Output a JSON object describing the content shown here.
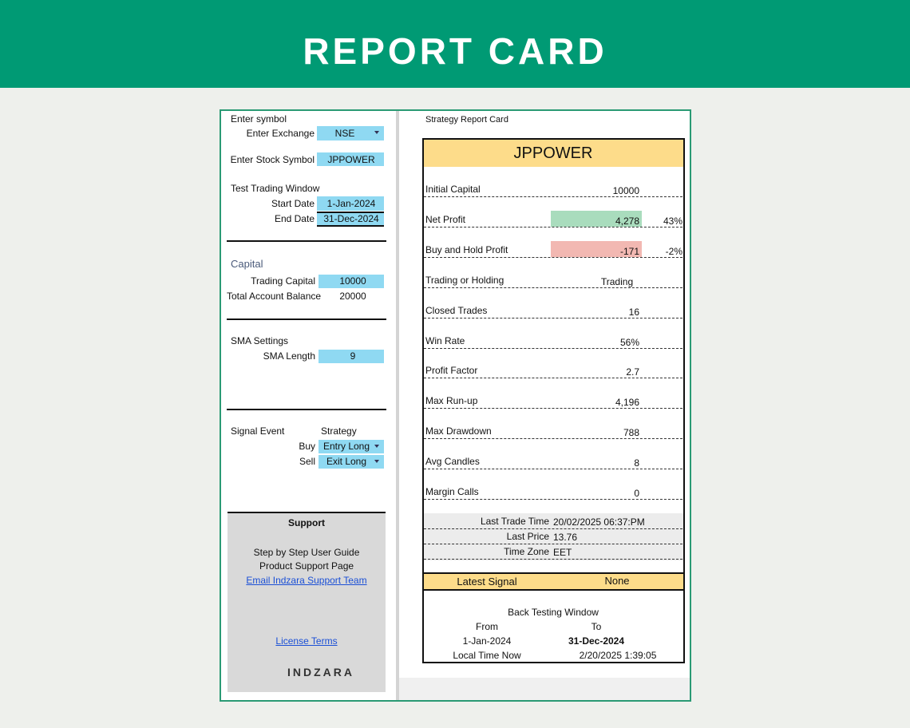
{
  "header": {
    "title": "REPORT CARD"
  },
  "inputs": {
    "section_label": "Enter symbol",
    "exchange": {
      "label": "Enter Exchange",
      "value": "NSE"
    },
    "symbol": {
      "label": "Enter Stock Symbol",
      "value": "JPPOWER"
    },
    "window_label": "Test Trading Window",
    "start_date": {
      "label": "Start Date",
      "value": "1-Jan-2024"
    },
    "end_date": {
      "label": "End Date",
      "value": "31-Dec-2024"
    },
    "capital_label": "Capital",
    "trading_capital": {
      "label": "Trading Capital",
      "value": 10000
    },
    "account_balance": {
      "label": "Total Account Balance",
      "value": 20000
    },
    "sma_label": "SMA Settings",
    "sma_length": {
      "label": "SMA Length",
      "value": 9
    },
    "signal": {
      "label": "Signal Event",
      "column": "Strategy",
      "buy": {
        "label": "Buy",
        "value": "Entry Long"
      },
      "sell": {
        "label": "Sell",
        "value": "Exit Long"
      }
    }
  },
  "support": {
    "title": "Support",
    "links": [
      "Step by Step User Guide",
      "Product Support Page",
      "Email Indzara Support Team"
    ],
    "license": "License Terms",
    "brand": "INDZARA"
  },
  "report": {
    "title": "Strategy Report Card",
    "symbol": "JPPOWER",
    "metrics": [
      {
        "label": "Initial Capital",
        "value": 10000
      },
      {
        "label": "Net Profit",
        "value": 4278,
        "value_label": "4,278",
        "percent": 43,
        "percent_label": "43%",
        "highlight": "#a9dcbd"
      },
      {
        "label": "Buy and Hold Profit",
        "value": -171,
        "percent": -2,
        "percent_label": "-2%",
        "highlight": "#f2b8b2"
      },
      {
        "label": "Trading or Holding",
        "value": "Trading"
      },
      {
        "label": "Closed Trades",
        "value": 16
      },
      {
        "label": "Win Rate",
        "value": 56,
        "value_label": "56%"
      },
      {
        "label": "Profit Factor",
        "value": 2.7
      },
      {
        "label": "Max Run-up",
        "value": 4196,
        "value_label": "4,196"
      },
      {
        "label": "Max Drawdown",
        "value": 788
      },
      {
        "label": "Avg Candles",
        "value": 8
      },
      {
        "label": "Margin Calls",
        "value": 0
      }
    ],
    "info": [
      {
        "label": "Last Trade Time",
        "value": "20/02/2025 06:37:PM"
      },
      {
        "label": "Last Price",
        "value": 13.76
      },
      {
        "label": "Time Zone",
        "value": "EET"
      }
    ],
    "latest_signal": {
      "label": "Latest Signal",
      "value": "None"
    },
    "window": {
      "title": "Back Testing Window",
      "from_label": "From",
      "to_label": "To",
      "from": "1-Jan-2024",
      "to": "31-Dec-2024",
      "local_time_label": "Local Time Now",
      "local_time": "2/20/2025 1:39:05"
    }
  }
}
